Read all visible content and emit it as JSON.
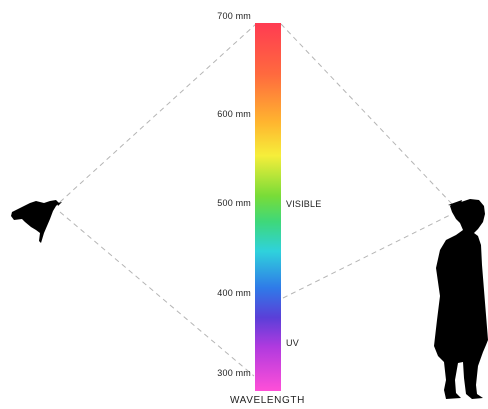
{
  "diagram": {
    "axis_title": "WAVELENGTH",
    "ticks": [
      {
        "label": "700 mm",
        "value": 700
      },
      {
        "label": "600 mm",
        "value": 600
      },
      {
        "label": "500 mm",
        "value": 500
      },
      {
        "label": "400 mm",
        "value": 400
      },
      {
        "label": "300 mm",
        "value": 300
      }
    ],
    "band_labels": {
      "visible": "VISIBLE",
      "uv": "UV"
    },
    "figures": [
      "bird-silhouette",
      "human-silhouette"
    ],
    "spectrum_colors": [
      "#ff3b52",
      "#ff7a3c",
      "#ffe93a",
      "#5fdc3c",
      "#2fd9d6",
      "#2f5ee8",
      "#8a2be2",
      "#ff4fd8"
    ]
  }
}
